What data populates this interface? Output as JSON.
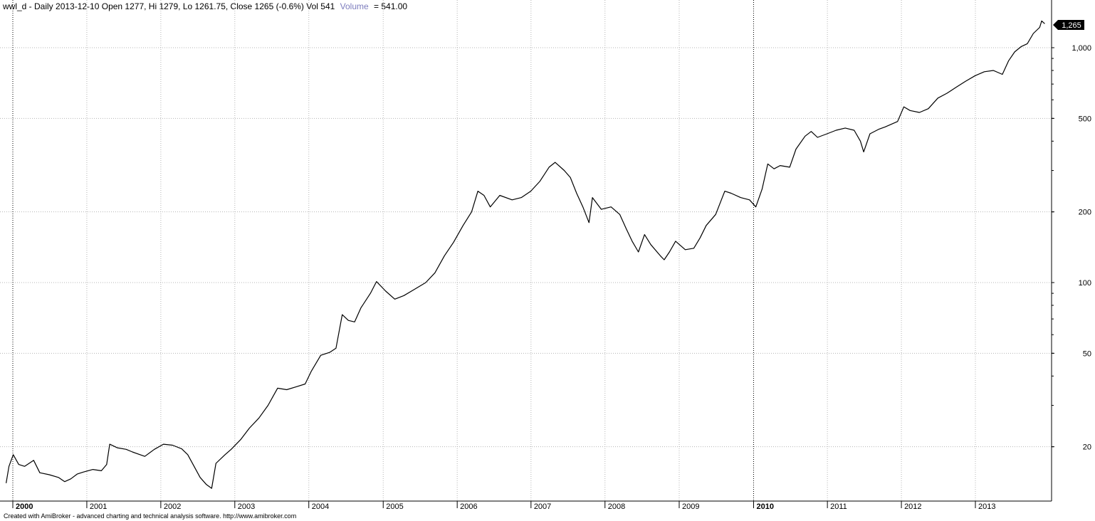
{
  "header": {
    "text": "wwl_d - Daily 2013-12-10 Open 1277, Hi 1279, Lo 1261.75, Close 1265 (-0.6%) Vol 541",
    "volume_label": "Volume",
    "volume_value": "= 541.00",
    "volume_color": "#7d7dbe"
  },
  "footer": {
    "text": "Created with AmiBroker - advanced charting and technical analysis software. http://www.amibroker.com"
  },
  "last_price_badge": "1,265",
  "colors": {
    "price_line": "#000000",
    "grid": "#b4b4b4",
    "badge_bg": "#000000"
  },
  "chart_data": {
    "type": "line",
    "title": "wwl_d - Daily",
    "y_scale": "log",
    "ylim": [
      12.6,
      1330
    ],
    "grid": true,
    "y_ticks": [
      {
        "value": 20,
        "label": "20"
      },
      {
        "value": 50,
        "label": "50"
      },
      {
        "value": 100,
        "label": "100"
      },
      {
        "value": 200,
        "label": "200"
      },
      {
        "value": 500,
        "label": "500"
      },
      {
        "value": 1000,
        "label": "1,000"
      }
    ],
    "x_ticks": [
      {
        "date": "2000-01-03",
        "label": "2000",
        "bold": true
      },
      {
        "date": "2001-01-02",
        "label": "2001",
        "bold": false
      },
      {
        "date": "2002-01-02",
        "label": "2002",
        "bold": false
      },
      {
        "date": "2003-01-02",
        "label": "2003",
        "bold": false
      },
      {
        "date": "2004-01-02",
        "label": "2004",
        "bold": false
      },
      {
        "date": "2005-01-03",
        "label": "2005",
        "bold": false
      },
      {
        "date": "2006-01-03",
        "label": "2006",
        "bold": false
      },
      {
        "date": "2007-01-02",
        "label": "2007",
        "bold": false
      },
      {
        "date": "2008-01-02",
        "label": "2008",
        "bold": false
      },
      {
        "date": "2009-01-02",
        "label": "2009",
        "bold": false
      },
      {
        "date": "2010-01-04",
        "label": "2010",
        "bold": true
      },
      {
        "date": "2011-01-03",
        "label": "2011",
        "bold": false
      },
      {
        "date": "2012-01-03",
        "label": "2012",
        "bold": false
      },
      {
        "date": "2013-01-02",
        "label": "2013",
        "bold": false
      }
    ],
    "series": [
      {
        "values": [
          [
            "1999-12-01",
            14.0
          ],
          [
            "1999-12-15",
            16.5
          ],
          [
            "2000-01-05",
            18.5
          ],
          [
            "2000-02-01",
            16.8
          ],
          [
            "2000-03-01",
            16.5
          ],
          [
            "2000-04-15",
            17.5
          ],
          [
            "2000-05-15",
            15.5
          ],
          [
            "2000-07-01",
            15.2
          ],
          [
            "2000-08-15",
            14.8
          ],
          [
            "2000-09-15",
            14.2
          ],
          [
            "2000-10-15",
            14.6
          ],
          [
            "2000-11-15",
            15.3
          ],
          [
            "2000-12-15",
            15.6
          ],
          [
            "2001-02-01",
            16.0
          ],
          [
            "2001-03-15",
            15.8
          ],
          [
            "2001-04-10",
            16.8
          ],
          [
            "2001-04-25",
            20.5
          ],
          [
            "2001-06-01",
            19.8
          ],
          [
            "2001-07-15",
            19.5
          ],
          [
            "2001-08-15",
            19.0
          ],
          [
            "2001-10-15",
            18.2
          ],
          [
            "2001-12-01",
            19.5
          ],
          [
            "2002-01-15",
            20.5
          ],
          [
            "2002-03-01",
            20.3
          ],
          [
            "2002-04-15",
            19.6
          ],
          [
            "2002-05-15",
            18.5
          ],
          [
            "2002-06-15",
            16.5
          ],
          [
            "2002-07-15",
            14.8
          ],
          [
            "2002-08-15",
            13.8
          ],
          [
            "2002-09-10",
            13.3
          ],
          [
            "2002-10-01",
            17.0
          ],
          [
            "2002-11-15",
            18.5
          ],
          [
            "2002-12-15",
            19.5
          ],
          [
            "2003-02-01",
            21.5
          ],
          [
            "2003-03-15",
            24.0
          ],
          [
            "2003-05-01",
            26.5
          ],
          [
            "2003-06-15",
            30.0
          ],
          [
            "2003-08-01",
            35.5
          ],
          [
            "2003-09-15",
            35.0
          ],
          [
            "2003-11-01",
            36.0
          ],
          [
            "2003-12-15",
            37.0
          ],
          [
            "2004-01-15",
            42.0
          ],
          [
            "2004-03-01",
            49.0
          ],
          [
            "2004-04-15",
            50.5
          ],
          [
            "2004-05-15",
            52.5
          ],
          [
            "2004-06-15",
            73.0
          ],
          [
            "2004-07-15",
            69.0
          ],
          [
            "2004-08-15",
            68.0
          ],
          [
            "2004-09-15",
            78.0
          ],
          [
            "2004-11-01",
            90.0
          ],
          [
            "2004-12-01",
            101.0
          ],
          [
            "2005-01-15",
            92.0
          ],
          [
            "2005-03-01",
            85.0
          ],
          [
            "2005-04-15",
            88.0
          ],
          [
            "2005-06-01",
            93.0
          ],
          [
            "2005-08-01",
            100.0
          ],
          [
            "2005-09-15",
            110.0
          ],
          [
            "2005-11-01",
            130.0
          ],
          [
            "2005-12-15",
            148.0
          ],
          [
            "2006-02-01",
            175.0
          ],
          [
            "2006-03-15",
            200.0
          ],
          [
            "2006-04-15",
            245.0
          ],
          [
            "2006-05-15",
            235.0
          ],
          [
            "2006-06-15",
            210.0
          ],
          [
            "2006-08-01",
            235.0
          ],
          [
            "2006-10-01",
            225.0
          ],
          [
            "2006-11-15",
            230.0
          ],
          [
            "2007-01-01",
            245.0
          ],
          [
            "2007-02-15",
            270.0
          ],
          [
            "2007-04-01",
            310.0
          ],
          [
            "2007-05-01",
            325.0
          ],
          [
            "2007-06-15",
            300.0
          ],
          [
            "2007-07-15",
            280.0
          ],
          [
            "2007-08-15",
            240.0
          ],
          [
            "2007-09-15",
            210.0
          ],
          [
            "2007-10-15",
            180.0
          ],
          [
            "2007-11-01",
            230.0
          ],
          [
            "2007-12-15",
            205.0
          ],
          [
            "2008-02-01",
            210.0
          ],
          [
            "2008-03-15",
            195.0
          ],
          [
            "2008-04-15",
            170.0
          ],
          [
            "2008-05-15",
            150.0
          ],
          [
            "2008-06-15",
            135.0
          ],
          [
            "2008-07-15",
            160.0
          ],
          [
            "2008-08-15",
            145.0
          ],
          [
            "2008-10-01",
            130.0
          ],
          [
            "2008-10-20",
            125.0
          ],
          [
            "2008-11-15",
            135.0
          ],
          [
            "2008-12-15",
            150.0
          ],
          [
            "2009-02-01",
            138.0
          ],
          [
            "2009-03-15",
            140.0
          ],
          [
            "2009-04-15",
            155.0
          ],
          [
            "2009-05-15",
            175.0
          ],
          [
            "2009-07-01",
            195.0
          ],
          [
            "2009-08-15",
            245.0
          ],
          [
            "2009-09-15",
            240.0
          ],
          [
            "2009-11-01",
            230.0
          ],
          [
            "2009-12-15",
            225.0
          ],
          [
            "2010-01-15",
            210.0
          ],
          [
            "2010-02-15",
            250.0
          ],
          [
            "2010-03-15",
            320.0
          ],
          [
            "2010-04-15",
            305.0
          ],
          [
            "2010-05-15",
            315.0
          ],
          [
            "2010-07-01",
            310.0
          ],
          [
            "2010-08-01",
            370.0
          ],
          [
            "2010-09-15",
            420.0
          ],
          [
            "2010-10-15",
            440.0
          ],
          [
            "2010-11-15",
            415.0
          ],
          [
            "2011-01-01",
            430.0
          ],
          [
            "2011-02-15",
            445.0
          ],
          [
            "2011-04-01",
            455.0
          ],
          [
            "2011-05-15",
            445.0
          ],
          [
            "2011-06-15",
            400.0
          ],
          [
            "2011-07-01",
            360.0
          ],
          [
            "2011-08-01",
            430.0
          ],
          [
            "2011-09-15",
            450.0
          ],
          [
            "2011-10-15",
            460.0
          ],
          [
            "2011-12-15",
            485.0
          ],
          [
            "2012-01-15",
            560.0
          ],
          [
            "2012-02-15",
            540.0
          ],
          [
            "2012-04-01",
            530.0
          ],
          [
            "2012-05-15",
            550.0
          ],
          [
            "2012-07-01",
            610.0
          ],
          [
            "2012-08-15",
            640.0
          ],
          [
            "2012-10-01",
            680.0
          ],
          [
            "2012-11-15",
            720.0
          ],
          [
            "2013-01-01",
            760.0
          ],
          [
            "2013-02-15",
            790.0
          ],
          [
            "2013-04-01",
            800.0
          ],
          [
            "2013-05-15",
            770.0
          ],
          [
            "2013-06-15",
            880.0
          ],
          [
            "2013-07-15",
            960.0
          ],
          [
            "2013-08-15",
            1010.0
          ],
          [
            "2013-09-15",
            1040.0
          ],
          [
            "2013-10-15",
            1150.0
          ],
          [
            "2013-11-15",
            1220.0
          ],
          [
            "2013-11-25",
            1300.0
          ],
          [
            "2013-12-10",
            1265.0
          ]
        ]
      }
    ]
  }
}
